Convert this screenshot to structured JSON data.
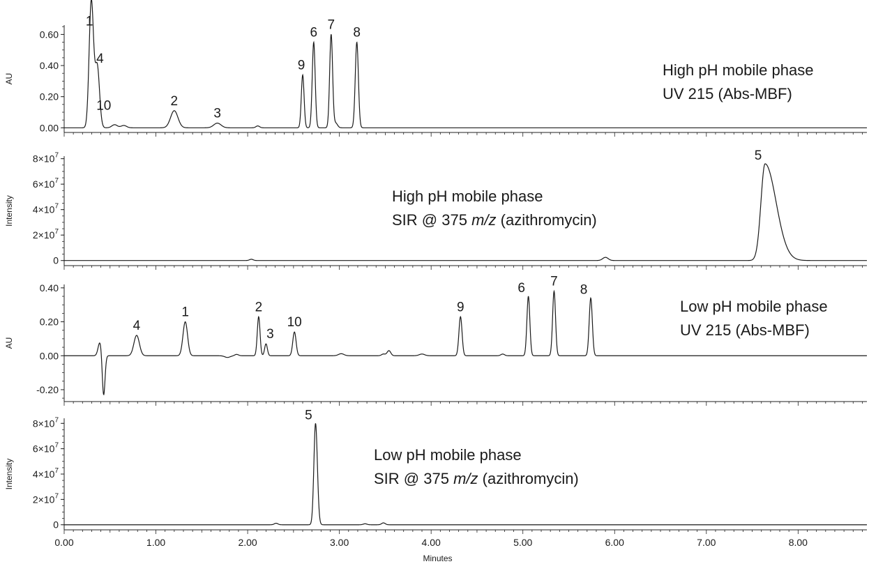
{
  "chart_data": {
    "type": "line",
    "x_axis": {
      "label": "Minutes",
      "range": [
        0,
        8.75
      ],
      "ticks": [
        "0.00",
        "1.00",
        "2.00",
        "3.00",
        "4.00",
        "5.00",
        "6.00",
        "7.00",
        "8.00"
      ],
      "tick_values": [
        0,
        1,
        2,
        3,
        4,
        5,
        6,
        7,
        8
      ]
    },
    "panels": [
      {
        "id": "high-ph-uv",
        "ylabel": "AU",
        "ylim": [
          -0.03,
          0.66
        ],
        "ytick_values": [
          0,
          0.2,
          0.4,
          0.6
        ],
        "ytick_labels": [
          "0.00",
          "0.20",
          "0.40",
          "0.60"
        ],
        "annotation": [
          "High pH mobile phase",
          "UV 215 (Abs-MBF)"
        ],
        "baseline": 0.0,
        "peaks": [
          {
            "label": "1",
            "rt": 0.29,
            "height": 0.63,
            "width": 0.022
          },
          {
            "label": "10",
            "rt": 0.31,
            "height": 0.26,
            "width": 0.02
          },
          {
            "label": "4",
            "rt": 0.36,
            "height": 0.4,
            "width": 0.025
          },
          {
            "label": "",
            "rt": 0.55,
            "height": 0.02,
            "width": 0.03
          },
          {
            "label": "",
            "rt": 0.65,
            "height": 0.015,
            "width": 0.03
          },
          {
            "label": "2",
            "rt": 1.2,
            "height": 0.11,
            "width": 0.04
          },
          {
            "label": "3",
            "rt": 1.67,
            "height": 0.03,
            "width": 0.04
          },
          {
            "label": "",
            "rt": 2.11,
            "height": 0.012,
            "width": 0.02
          },
          {
            "label": "9",
            "rt": 2.6,
            "height": 0.34,
            "width": 0.015
          },
          {
            "label": "6",
            "rt": 2.72,
            "height": 0.55,
            "width": 0.016
          },
          {
            "label": "7",
            "rt": 2.91,
            "height": 0.6,
            "width": 0.016
          },
          {
            "label": "",
            "rt": 2.96,
            "height": 0.03,
            "width": 0.02
          },
          {
            "label": "8",
            "rt": 3.19,
            "height": 0.55,
            "width": 0.017
          }
        ]
      },
      {
        "id": "high-ph-sir",
        "ylabel": "Intensity",
        "ylim": [
          -4000000,
          82000000
        ],
        "ytick_values": [
          0,
          20000000,
          40000000,
          60000000,
          80000000
        ],
        "ytick_labels": [
          "0",
          "2×10⁷",
          "4×10⁷",
          "6×10⁷",
          "8×10⁷"
        ],
        "annotation": [
          "High pH mobile phase",
          "SIR @ 375 m/z (azithromycin)"
        ],
        "baseline": 0,
        "peaks": [
          {
            "label": "",
            "rt": 2.04,
            "height": 1000000,
            "width": 0.02
          },
          {
            "label": "",
            "rt": 5.9,
            "height": 2500000,
            "width": 0.03
          },
          {
            "label": "5",
            "rt": 7.64,
            "height": 76000000,
            "width": 0.045,
            "tail": 0.12
          }
        ]
      },
      {
        "id": "low-ph-uv",
        "ylabel": "AU",
        "ylim": [
          -0.27,
          0.42
        ],
        "ytick_values": [
          -0.2,
          0,
          0.2,
          0.4
        ],
        "ytick_labels": [
          "-0.20",
          "0.00",
          "0.20",
          "0.40"
        ],
        "annotation": [
          "Low pH mobile phase",
          "UV 215 (Abs-MBF)"
        ],
        "baseline": 0.0,
        "peaks": [
          {
            "label": "",
            "rt": 0.39,
            "height": 0.08,
            "width": 0.02
          },
          {
            "label": "",
            "rt": 0.43,
            "height": -0.24,
            "width": 0.015
          },
          {
            "label": "4",
            "rt": 0.79,
            "height": 0.12,
            "width": 0.03
          },
          {
            "label": "1",
            "rt": 1.32,
            "height": 0.2,
            "width": 0.025
          },
          {
            "label": "",
            "rt": 1.78,
            "height": -0.01,
            "width": 0.03
          },
          {
            "label": "",
            "rt": 1.88,
            "height": 0.008,
            "width": 0.02
          },
          {
            "label": "2",
            "rt": 2.12,
            "height": 0.23,
            "width": 0.015
          },
          {
            "label": "3",
            "rt": 2.2,
            "height": 0.07,
            "width": 0.015
          },
          {
            "label": "10",
            "rt": 2.51,
            "height": 0.14,
            "width": 0.018
          },
          {
            "label": "",
            "rt": 3.02,
            "height": 0.012,
            "width": 0.03
          },
          {
            "label": "",
            "rt": 3.48,
            "height": 0.01,
            "width": 0.02
          },
          {
            "label": "",
            "rt": 3.54,
            "height": 0.03,
            "width": 0.02
          },
          {
            "label": "",
            "rt": 3.9,
            "height": 0.01,
            "width": 0.03
          },
          {
            "label": "9",
            "rt": 4.32,
            "height": 0.23,
            "width": 0.017
          },
          {
            "label": "",
            "rt": 4.78,
            "height": 0.01,
            "width": 0.02
          },
          {
            "label": "6",
            "rt": 5.06,
            "height": 0.35,
            "width": 0.016
          },
          {
            "label": "7",
            "rt": 5.34,
            "height": 0.38,
            "width": 0.016
          },
          {
            "label": "8",
            "rt": 5.74,
            "height": 0.34,
            "width": 0.017
          }
        ]
      },
      {
        "id": "low-ph-sir",
        "ylabel": "Intensity",
        "ylim": [
          -4000000,
          84000000
        ],
        "ytick_values": [
          0,
          20000000,
          40000000,
          60000000,
          80000000
        ],
        "ytick_labels": [
          "0",
          "2×10⁷",
          "4×10⁷",
          "6×10⁷",
          "8×10⁷"
        ],
        "annotation": [
          "Low pH mobile phase",
          "SIR @ 375 m/z (azithromycin)"
        ],
        "baseline": 0,
        "peaks": [
          {
            "label": "",
            "rt": 2.31,
            "height": 1200000,
            "width": 0.02
          },
          {
            "label": "5",
            "rt": 2.74,
            "height": 80000000,
            "width": 0.018,
            "tail": 0.02
          },
          {
            "label": "",
            "rt": 3.28,
            "height": 800000,
            "width": 0.02
          },
          {
            "label": "",
            "rt": 3.48,
            "height": 1500000,
            "width": 0.02
          }
        ]
      }
    ]
  }
}
